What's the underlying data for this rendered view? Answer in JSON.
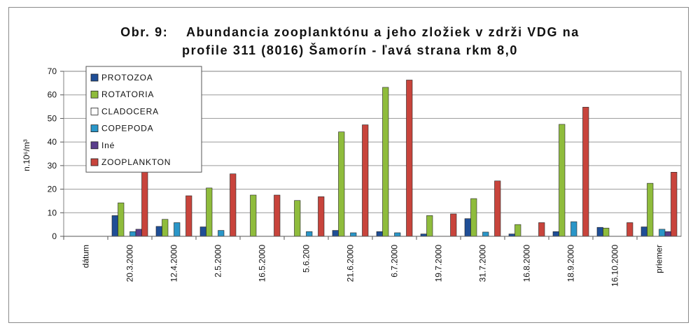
{
  "chart_data": {
    "type": "bar",
    "title_line1": "Obr. 9:    Abundancia zooplanktónu a jeho zložiek v zdrži VDG na",
    "title_line2": "profile 311 (8016) Šamorín - ľavá strana rkm 8,0",
    "ylabel": "n.10⁶/m³",
    "xlabel": "",
    "ylim": [
      0,
      70
    ],
    "yticks": [
      0,
      10,
      20,
      30,
      40,
      50,
      60,
      70
    ],
    "grid": true,
    "legend_position": "top-left",
    "categories": [
      "dátum",
      "20.3.2000",
      "12.4.2000",
      "2.5.2000",
      "16.5.2000",
      "5.6.200",
      "21.6.2000",
      "6.7.2000",
      "19.7.2000",
      "31.7.2000",
      "16.8.2000",
      "18.9.2000",
      "16.10.2000",
      "priemer"
    ],
    "series": [
      {
        "name": "PROTOZOA",
        "color": "#1f4e96",
        "values": [
          0,
          8.8,
          4.2,
          4.0,
          0,
          0,
          2.5,
          2.0,
          1.0,
          7.5,
          1.0,
          2.0,
          3.8,
          4.0
        ]
      },
      {
        "name": "ROTATORIA",
        "color": "#8fbc3c",
        "values": [
          0,
          14.2,
          7.2,
          20.5,
          17.5,
          15.2,
          44.3,
          63.2,
          8.8,
          16.0,
          5.0,
          47.5,
          3.5,
          22.5
        ]
      },
      {
        "name": "CLADOCERA",
        "color": "#ffffff",
        "values": [
          0,
          0,
          0,
          0,
          0,
          0,
          0,
          0,
          0,
          0,
          0,
          0,
          0,
          0
        ]
      },
      {
        "name": "COPEPODA",
        "color": "#2a96c8",
        "values": [
          0,
          2.0,
          5.8,
          2.5,
          0,
          2.0,
          1.5,
          1.5,
          0,
          1.8,
          0,
          6.2,
          0,
          3.0
        ]
      },
      {
        "name": "Iné",
        "color": "#5a3e8c",
        "values": [
          0,
          3.0,
          0,
          0,
          0,
          0,
          0,
          0,
          0,
          0,
          0,
          0,
          0,
          2.0
        ]
      },
      {
        "name": "ZOOPLANKTON",
        "color": "#c8443c",
        "values": [
          0,
          27.8,
          17.2,
          26.5,
          17.5,
          16.8,
          47.3,
          66.3,
          9.5,
          23.5,
          5.8,
          54.8,
          5.8,
          27.2
        ]
      }
    ]
  }
}
